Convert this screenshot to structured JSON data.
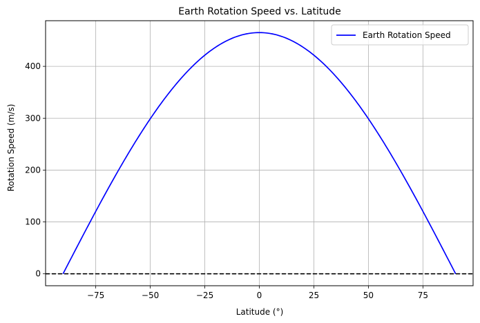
{
  "chart_data": {
    "type": "line",
    "title": "Earth Rotation Speed vs. Latitude",
    "xlabel": "Latitude (°)",
    "ylabel": "Rotation Speed (m/s)",
    "xlim": [
      -98,
      98
    ],
    "ylim": [
      -23,
      488
    ],
    "xticks": [
      -75,
      -50,
      -25,
      0,
      25,
      50,
      75
    ],
    "yticks": [
      0,
      100,
      200,
      300,
      400
    ],
    "grid": true,
    "legend_position": "top-right",
    "series": [
      {
        "name": "Earth Rotation Speed",
        "color": "#0000ff",
        "equatorial_speed": 465.1,
        "x": [
          -90,
          -85,
          -80,
          -75,
          -70,
          -65,
          -60,
          -55,
          -50,
          -45,
          -40,
          -35,
          -30,
          -25,
          -20,
          -15,
          -10,
          -5,
          0,
          5,
          10,
          15,
          20,
          25,
          30,
          35,
          40,
          45,
          50,
          55,
          60,
          65,
          70,
          75,
          80,
          85,
          90
        ],
        "y": [
          0,
          40.5,
          80.8,
          120.4,
          159.1,
          196.6,
          232.6,
          266.8,
          299.0,
          328.9,
          356.3,
          381.0,
          402.8,
          421.5,
          437.1,
          449.3,
          458.0,
          463.3,
          465.1,
          463.3,
          458.0,
          449.3,
          437.1,
          421.5,
          402.8,
          381.0,
          356.3,
          328.9,
          299.0,
          266.8,
          232.6,
          196.6,
          159.1,
          120.4,
          80.8,
          40.5,
          0
        ]
      }
    ],
    "reference_line": {
      "y": 0,
      "color": "#000000",
      "style": "dashed"
    }
  }
}
